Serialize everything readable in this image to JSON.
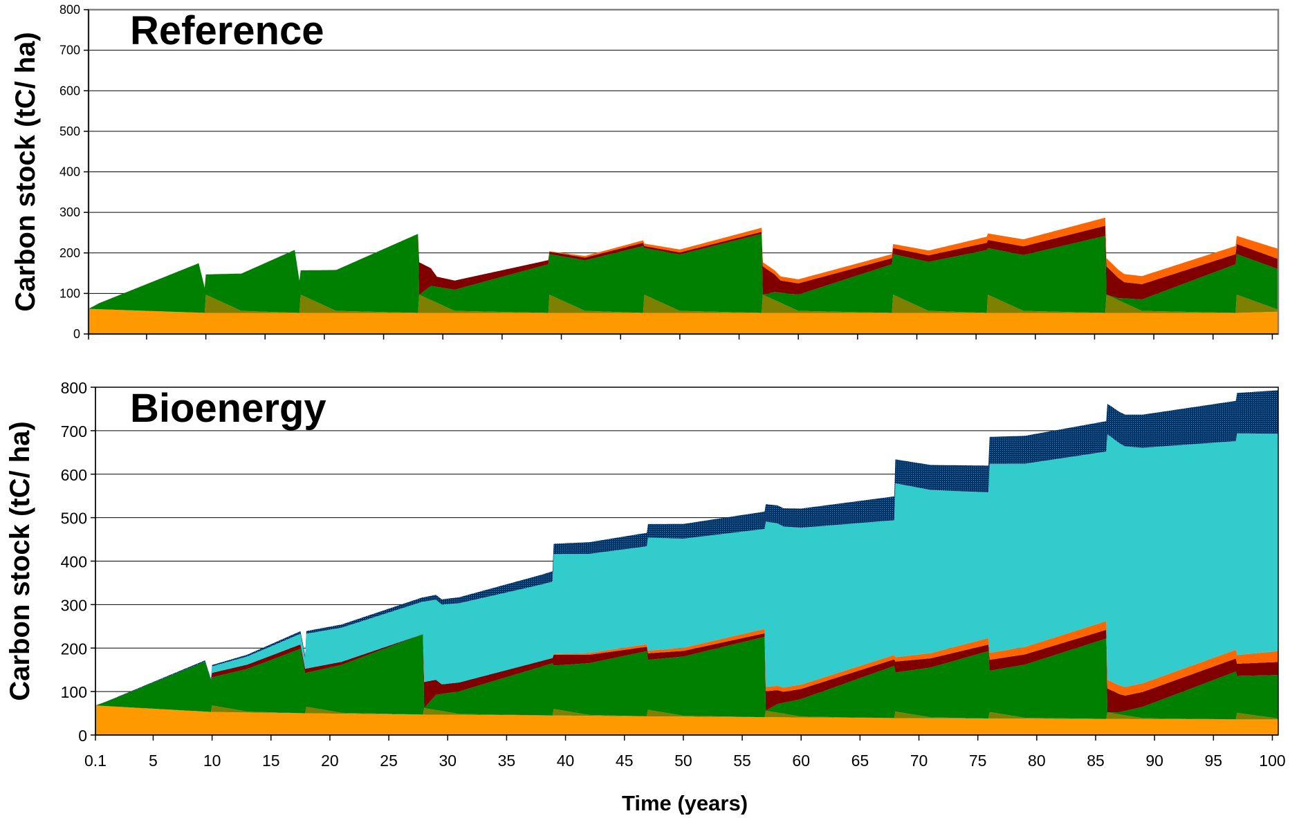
{
  "chart_data": [
    {
      "type": "area",
      "title": "Reference",
      "ylabel": "Carbon stock (tC/ ha)",
      "xlabel": "",
      "ylim": [
        0,
        800
      ],
      "yticks": [
        0,
        100,
        200,
        300,
        400,
        500,
        600,
        700,
        800
      ],
      "xlim": [
        0.1,
        100.5
      ],
      "grid": true,
      "stacking": "stacked",
      "colors": {
        "soil": "#FF9900",
        "stumps": "#808000",
        "trees": "#008000",
        "litter": "#800000",
        "deadwood": "#FF6600"
      },
      "series": [
        {
          "key": "soil",
          "x": [
            0.1,
            10,
            18,
            28,
            39,
            47,
            57,
            68,
            76,
            86,
            97,
            100.5
          ],
          "values": [
            62,
            52,
            52,
            52,
            52,
            52,
            52,
            52,
            52,
            52,
            52,
            55
          ]
        },
        {
          "key": "stumps",
          "x": [
            0.1,
            9.9,
            10,
            13,
            17.9,
            18,
            21,
            27.9,
            28,
            31,
            38.9,
            39,
            42,
            46.9,
            47,
            50,
            56.9,
            57,
            60,
            67.9,
            68,
            71,
            75.9,
            76,
            79,
            85.9,
            86,
            89,
            96.9,
            97,
            100.5
          ],
          "values": [
            0,
            0,
            45,
            5,
            0,
            45,
            5,
            0,
            45,
            5,
            0,
            45,
            5,
            0,
            45,
            5,
            0,
            45,
            5,
            0,
            45,
            5,
            0,
            45,
            5,
            0,
            45,
            5,
            0,
            45,
            5
          ]
        },
        {
          "key": "trees",
          "x": [
            0.1,
            1,
            9.4,
            10,
            17.5,
            18,
            27.9,
            28,
            29,
            38.9,
            39,
            46.9,
            47,
            56.9,
            57,
            58,
            67.9,
            68,
            75.9,
            76,
            85.9,
            86,
            87,
            96.9,
            97,
            100.5
          ],
          "values": [
            0,
            15,
            122,
            50,
            155,
            60,
            195,
            0,
            35,
            120,
            100,
            165,
            115,
            195,
            0,
            20,
            120,
            100,
            155,
            115,
            190,
            0,
            5,
            120,
            100,
            100
          ]
        },
        {
          "key": "litter",
          "x": [
            0.1,
            27.9,
            28,
            29.5,
            38.9,
            39,
            46.9,
            47,
            56.9,
            57,
            58.5,
            67.9,
            68,
            75.9,
            76,
            85.9,
            86,
            87.5,
            96.9,
            97,
            100.5
          ],
          "values": [
            0,
            0,
            80,
            25,
            10,
            6,
            8,
            5,
            5,
            70,
            30,
            15,
            15,
            18,
            20,
            25,
            70,
            40,
            25,
            25,
            25
          ]
        },
        {
          "key": "deadwood",
          "x": [
            0.1,
            38,
            42,
            56.9,
            57,
            67.9,
            68,
            75.9,
            76,
            85.9,
            86,
            96.9,
            97,
            100.5
          ],
          "values": [
            0,
            0,
            4,
            10,
            10,
            10,
            10,
            15,
            16,
            20,
            20,
            20,
            20,
            25
          ]
        }
      ]
    },
    {
      "type": "area",
      "title": "Bioenergy",
      "ylabel": "Carbon stock (tC/ ha)",
      "xlabel": "Time (years)",
      "ylim": [
        0,
        800
      ],
      "yticks": [
        0,
        100,
        200,
        300,
        400,
        500,
        600,
        700,
        800
      ],
      "xlim": [
        0.1,
        100.5
      ],
      "xticks": [
        0.1,
        5,
        10,
        15,
        20,
        25,
        30,
        35,
        40,
        45,
        50,
        55,
        60,
        65,
        70,
        75,
        80,
        85,
        90,
        95,
        100
      ],
      "grid": true,
      "stacking": "stacked",
      "colors": {
        "soil": "#FF9900",
        "stumps": "#808000",
        "trees": "#008000",
        "litter": "#800000",
        "deadwood": "#FF6600",
        "bioenergy": "#33CCCC",
        "fossil": "#003366"
      },
      "series": [
        {
          "key": "soil",
          "x": [
            0.1,
            10,
            18,
            28,
            39,
            47,
            57,
            68,
            76,
            86,
            97,
            100.5
          ],
          "values": [
            68,
            53,
            50,
            47,
            45,
            43,
            41,
            39,
            38,
            37,
            36,
            36
          ]
        },
        {
          "key": "stumps",
          "x": [
            0.1,
            9.9,
            10,
            13,
            17.9,
            18,
            21,
            27.9,
            28,
            31,
            38.9,
            39,
            42,
            46.9,
            47,
            50,
            56.9,
            57,
            60,
            67.9,
            68,
            71,
            75.9,
            76,
            79,
            85.9,
            86,
            89,
            96.9,
            97,
            100.5
          ],
          "values": [
            0,
            0,
            15,
            2,
            0,
            15,
            2,
            0,
            15,
            2,
            0,
            15,
            2,
            0,
            15,
            2,
            0,
            15,
            2,
            0,
            15,
            2,
            0,
            15,
            2,
            0,
            15,
            2,
            0,
            15,
            2
          ]
        },
        {
          "key": "trees",
          "x": [
            0.1,
            1,
            9.4,
            10,
            17.5,
            18,
            27.9,
            28,
            29,
            38.9,
            39,
            46.9,
            47,
            56.9,
            57,
            58,
            67.9,
            68,
            75.9,
            76,
            85.9,
            86,
            87,
            96.9,
            97,
            100.5
          ],
          "values": [
            0,
            10,
            115,
            65,
            148,
            78,
            185,
            0,
            35,
            120,
            100,
            150,
            115,
            185,
            0,
            20,
            120,
            90,
            155,
            95,
            185,
            0,
            5,
            110,
            85,
            100
          ]
        },
        {
          "key": "litter",
          "x": [
            0.1,
            9.9,
            10,
            18,
            27.9,
            28,
            29.5,
            38.9,
            39,
            46.9,
            47,
            56.9,
            57,
            58.5,
            67.9,
            68,
            75.9,
            76,
            85.9,
            86,
            87.5,
            96.9,
            97,
            100.5
          ],
          "values": [
            0,
            0,
            10,
            10,
            0,
            60,
            22,
            12,
            25,
            10,
            15,
            8,
            45,
            25,
            15,
            25,
            15,
            25,
            20,
            55,
            35,
            30,
            28,
            30
          ]
        },
        {
          "key": "deadwood",
          "x": [
            0.1,
            38,
            42,
            56.9,
            57,
            67.9,
            68,
            75.9,
            76,
            85.9,
            86,
            96.9,
            97,
            100.5
          ],
          "values": [
            0,
            0,
            4,
            10,
            10,
            10,
            10,
            15,
            16,
            20,
            20,
            20,
            20,
            25
          ]
        },
        {
          "key": "bioenergy",
          "x": [
            0.1,
            9.9,
            10,
            17.9,
            18,
            27.9,
            28,
            38.9,
            39,
            46.9,
            47,
            56.9,
            57,
            67.9,
            68,
            75.9,
            76,
            85.9,
            86,
            96.9,
            97,
            100.5
          ],
          "values": [
            0,
            0,
            15,
            25,
            80,
            75,
            185,
            175,
            230,
            225,
            260,
            230,
            380,
            310,
            400,
            335,
            435,
            390,
            565,
            480,
            510,
            500
          ]
        },
        {
          "key": "fossil",
          "x": [
            0.1,
            10,
            28,
            40,
            57,
            68,
            86,
            100.5
          ],
          "values": [
            0,
            3,
            10,
            25,
            40,
            55,
            70,
            100
          ]
        }
      ]
    }
  ]
}
